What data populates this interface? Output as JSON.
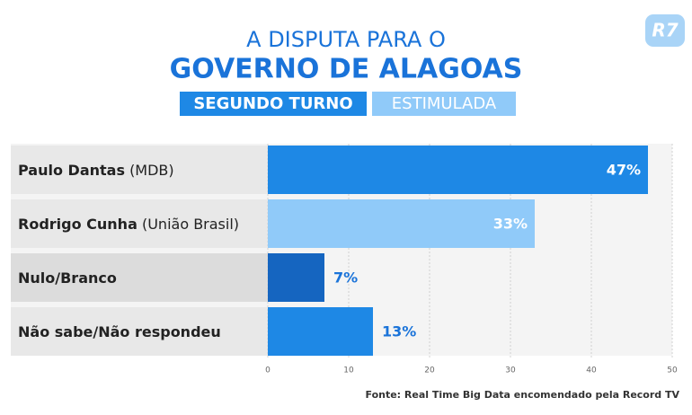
{
  "logo": "R7",
  "chart_data": {
    "type": "hbar",
    "title": "A DISPUTA PARA O",
    "subtitle": "GOVERNO DE ALAGOAS",
    "badges": [
      "SEGUNDO TURNO",
      "ESTIMULADA"
    ],
    "categories": [
      "Paulo Dantas",
      "Rodrigo Cunha",
      "Nulo/Branco",
      "Não sabe/Não respondeu"
    ],
    "category_notes": [
      "(MDB)",
      "(União Brasil)",
      null,
      null
    ],
    "values": [
      47,
      33,
      7,
      13
    ],
    "value_labels": [
      "47%",
      "33%",
      "7%",
      "13%"
    ],
    "colors": [
      "#1e88e5",
      "#90caf9",
      "#1565c0",
      "#1e88e5"
    ],
    "xlim": [
      0,
      50
    ],
    "xticks": [
      0,
      10,
      20,
      30,
      40,
      50
    ],
    "grid": true,
    "source": "Fonte: Real Time Big Data encomendado pela Record TV"
  }
}
